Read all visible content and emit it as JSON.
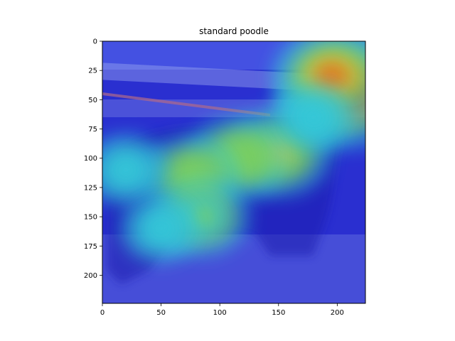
{
  "chart_data": {
    "type": "heatmap",
    "title": "standard poodle",
    "xlabel": "",
    "ylabel": "",
    "image_size": [
      224,
      224
    ],
    "xlim": [
      0,
      224
    ],
    "ylim": [
      224,
      0
    ],
    "x_ticks": [
      0,
      50,
      100,
      150,
      200
    ],
    "y_ticks": [
      0,
      25,
      50,
      75,
      100,
      125,
      150,
      175,
      200
    ],
    "colormap": "jet",
    "grid": false,
    "hotspots": [
      {
        "x": 210,
        "y": 42,
        "intensity": 1.0
      },
      {
        "x": 195,
        "y": 30,
        "intensity": 0.75
      },
      {
        "x": 150,
        "y": 95,
        "intensity": 0.6
      },
      {
        "x": 115,
        "y": 100,
        "intensity": 0.55
      },
      {
        "x": 75,
        "y": 115,
        "intensity": 0.5
      },
      {
        "x": 85,
        "y": 150,
        "intensity": 0.45
      },
      {
        "x": 20,
        "y": 110,
        "intensity": 0.35
      },
      {
        "x": 180,
        "y": 65,
        "intensity": 0.35
      },
      {
        "x": 50,
        "y": 160,
        "intensity": 0.3
      }
    ],
    "colors": {
      "base": "#2a2fd0",
      "low": "#3c4ee8",
      "mid_cyan": "#35c8d8",
      "mid_green": "#7fd05a",
      "mid_yellow": "#d8c830",
      "high_orange": "#e8701a",
      "peak_red": "#a80c0c"
    }
  }
}
